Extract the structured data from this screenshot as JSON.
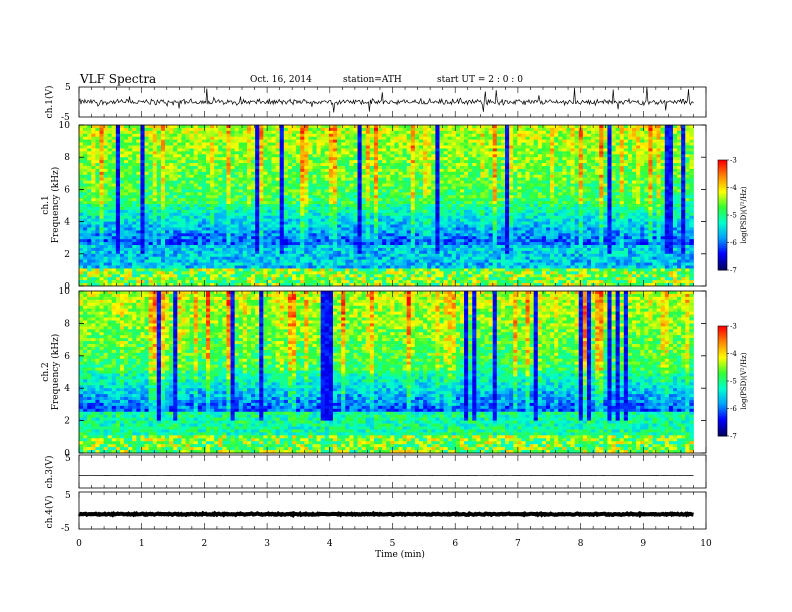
{
  "header": {
    "title": "VLF  Spectra",
    "date": "Oct. 16, 2014",
    "station": "station=ATH",
    "start": "start  UT  =   2  : 0  : 0"
  },
  "chart_data": [
    {
      "type": "line",
      "name": "ch1-waveform",
      "ylabel": "ch.1(V)",
      "ylim": [
        -5,
        5
      ],
      "yticks": [
        "5",
        "-5"
      ],
      "xlim": [
        0,
        10
      ],
      "baseline_v": 0.0,
      "noise_v": 0.8,
      "spike_v": 4.5
    },
    {
      "type": "heatmap",
      "name": "ch1-spectrogram",
      "ylabel_channel": "ch.1",
      "ylabel": "Frequency  (kHz)",
      "ylim": [
        0,
        10
      ],
      "yticks": [
        "0",
        "2",
        "4",
        "6",
        "8",
        "10"
      ],
      "xlim": [
        0,
        9.8
      ],
      "colorbar": {
        "label": "log(PSD)(V²/Hz)",
        "range": [
          -7,
          -3
        ],
        "ticks": [
          "-3",
          "-4",
          "-5",
          "-6",
          "-7"
        ]
      }
    },
    {
      "type": "heatmap",
      "name": "ch2-spectrogram",
      "ylabel_channel": "ch.2",
      "ylabel": "Frequency  (kHz)",
      "ylim": [
        0,
        10
      ],
      "yticks": [
        "0",
        "2",
        "4",
        "6",
        "8",
        "10"
      ],
      "xlim": [
        0,
        9.8
      ],
      "colorbar": {
        "label": "log(PSD)(V²/Hz)",
        "range": [
          -7,
          -3
        ],
        "ticks": [
          "-3",
          "-4",
          "-5",
          "-6",
          "-7"
        ]
      }
    },
    {
      "type": "line",
      "name": "ch3-waveform",
      "ylabel": "ch.3(V)",
      "ylim": [
        -5,
        5
      ],
      "yticks": [
        "5",
        "-5"
      ],
      "baseline_v": -1.2,
      "noise_v": 0.05
    },
    {
      "type": "line",
      "name": "ch4-waveform",
      "ylabel": "ch.4(V)",
      "ylim": [
        -5,
        5
      ],
      "yticks": [
        "5",
        "-5"
      ],
      "baseline_v": -1.0,
      "noise_v": 0.15
    }
  ],
  "xaxis": {
    "label": "Time  (min)",
    "range": [
      0,
      10
    ],
    "ticks": [
      "0",
      "1",
      "2",
      "3",
      "4",
      "5",
      "6",
      "7",
      "8",
      "9",
      "10"
    ]
  },
  "colors": {
    "scale": [
      "#000066",
      "#0000ff",
      "#00a0ff",
      "#00ffcc",
      "#33ff33",
      "#ffff00",
      "#ff8800",
      "#ff0000",
      "#ffffff"
    ]
  }
}
